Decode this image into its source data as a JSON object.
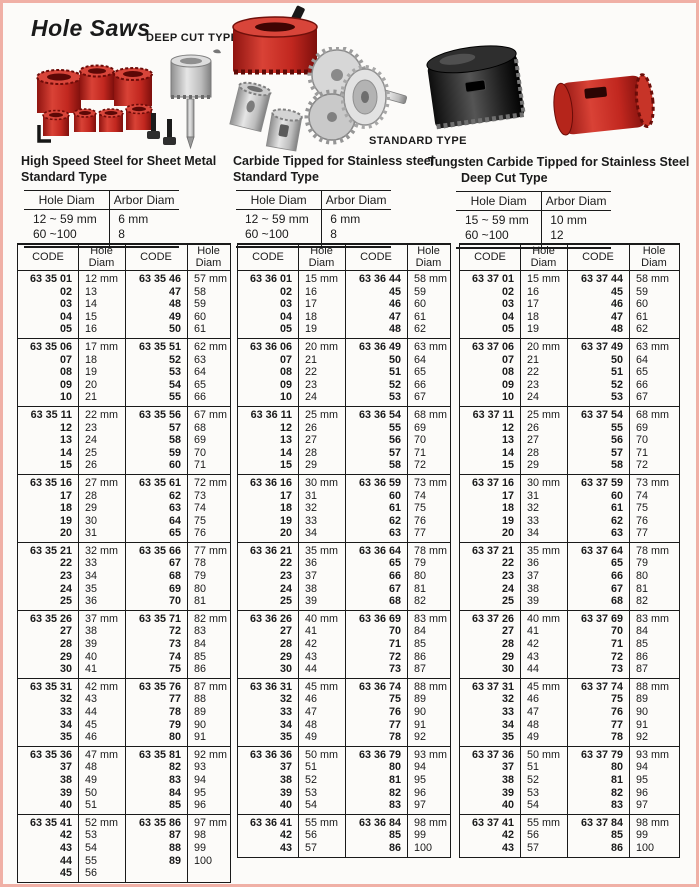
{
  "page": {
    "title": "Hole Saws"
  },
  "photo_labels": {
    "deep_cut": "DEEP CUT TYPE",
    "standard": "STANDARD TYPE"
  },
  "photos": [
    "hole-saw-set",
    "deep-cut-hole-saw",
    "large-red-hole-saw",
    "carbide-tipped-saws",
    "multi-tooth-cutters",
    "arbor-hole-saw",
    "black-hole-saw",
    "red-hole-saw"
  ],
  "colors": {
    "accent_red": "#c1272d",
    "frame_pink": "#f0b0a6",
    "rule_black": "#1a1a1a"
  },
  "sections": [
    {
      "line1": "High Speed Steel for Sheet Metal",
      "line2": "Standard Type",
      "headers": [
        "Hole Diam",
        "Arbor Diam"
      ],
      "rows": [
        [
          "12 ~ 59 mm",
          "6 mm"
        ],
        [
          "60 ~100",
          "8"
        ]
      ]
    },
    {
      "line1": "Carbide Tipped for Stainless steel",
      "line2": "Standard Type",
      "headers": [
        "Hole Diam",
        "Arbor Diam"
      ],
      "rows": [
        [
          "12 ~ 59 mm",
          "6 mm"
        ],
        [
          "60 ~100",
          "8"
        ]
      ]
    },
    {
      "line1": "Tungsten Carbide Tipped for Stainless Steel",
      "line2": "Deep Cut Type",
      "headers": [
        "Hole Diam",
        "Arbor Diam"
      ],
      "rows": [
        [
          "15 ~ 59 mm",
          "10 mm"
        ],
        [
          "60 ~100",
          "12"
        ]
      ]
    }
  ],
  "main": {
    "col_code": "CODE",
    "col_diam": "Hole Diam",
    "tables": [
      {
        "id": "6335",
        "blocks": [
          {
            "lc": [
              "63 35 01",
              "02",
              "03",
              "04",
              "05"
            ],
            "ld": [
              "12 mm",
              "13",
              "14",
              "15",
              "16"
            ],
            "rc": [
              "63 35 46",
              "47",
              "48",
              "49",
              "50"
            ],
            "rd": [
              "57 mm",
              "58",
              "59",
              "60",
              "61"
            ]
          },
          {
            "lc": [
              "63 35 06",
              "07",
              "08",
              "09",
              "10"
            ],
            "ld": [
              "17 mm",
              "18",
              "19",
              "20",
              "21"
            ],
            "rc": [
              "63 35 51",
              "52",
              "53",
              "54",
              "55"
            ],
            "rd": [
              "62 mm",
              "63",
              "64",
              "65",
              "66"
            ]
          },
          {
            "lc": [
              "63 35 11",
              "12",
              "13",
              "14",
              "15"
            ],
            "ld": [
              "22 mm",
              "23",
              "24",
              "25",
              "26"
            ],
            "rc": [
              "63 35 56",
              "57",
              "58",
              "59",
              "60"
            ],
            "rd": [
              "67 mm",
              "68",
              "69",
              "70",
              "71"
            ]
          },
          {
            "lc": [
              "63 35 16",
              "17",
              "18",
              "19",
              "20"
            ],
            "ld": [
              "27 mm",
              "28",
              "29",
              "30",
              "31"
            ],
            "rc": [
              "63 35 61",
              "62",
              "63",
              "64",
              "65"
            ],
            "rd": [
              "72 mm",
              "73",
              "74",
              "75",
              "76"
            ]
          },
          {
            "lc": [
              "63 35 21",
              "22",
              "23",
              "24",
              "25"
            ],
            "ld": [
              "32 mm",
              "33",
              "34",
              "35",
              "36"
            ],
            "rc": [
              "63 35 66",
              "67",
              "68",
              "69",
              "70"
            ],
            "rd": [
              "77 mm",
              "78",
              "79",
              "80",
              "81"
            ]
          },
          {
            "lc": [
              "63 35 26",
              "27",
              "28",
              "29",
              "30"
            ],
            "ld": [
              "37 mm",
              "38",
              "39",
              "40",
              "41"
            ],
            "rc": [
              "63 35 71",
              "72",
              "73",
              "74",
              "75"
            ],
            "rd": [
              "82 mm",
              "83",
              "84",
              "85",
              "86"
            ]
          },
          {
            "lc": [
              "63 35 31",
              "32",
              "33",
              "34",
              "35"
            ],
            "ld": [
              "42 mm",
              "43",
              "44",
              "45",
              "46"
            ],
            "rc": [
              "63 35 76",
              "77",
              "78",
              "79",
              "80"
            ],
            "rd": [
              "87 mm",
              "88",
              "89",
              "90",
              "91"
            ]
          },
          {
            "lc": [
              "63 35 36",
              "37",
              "38",
              "39",
              "40"
            ],
            "ld": [
              "47 mm",
              "48",
              "49",
              "50",
              "51"
            ],
            "rc": [
              "63 35 81",
              "82",
              "83",
              "84",
              "85"
            ],
            "rd": [
              "92 mm",
              "93",
              "94",
              "95",
              "96"
            ]
          },
          {
            "lc": [
              "63 35 41",
              "42",
              "43",
              "44",
              "45"
            ],
            "ld": [
              "52 mm",
              "53",
              "54",
              "55",
              "56"
            ],
            "rc": [
              "63 35 86",
              "87",
              "88",
              "89"
            ],
            "rd": [
              "97 mm",
              "98",
              "99",
              "100"
            ]
          }
        ]
      },
      {
        "id": "6336",
        "blocks": [
          {
            "lc": [
              "63 36 01",
              "02",
              "03",
              "04",
              "05"
            ],
            "ld": [
              "15 mm",
              "16",
              "17",
              "18",
              "19"
            ],
            "rc": [
              "63 36 44",
              "45",
              "46",
              "47",
              "48"
            ],
            "rd": [
              "58 mm",
              "59",
              "60",
              "61",
              "62"
            ]
          },
          {
            "lc": [
              "63 36 06",
              "07",
              "08",
              "09",
              "10"
            ],
            "ld": [
              "20 mm",
              "21",
              "22",
              "23",
              "24"
            ],
            "rc": [
              "63 36 49",
              "50",
              "51",
              "52",
              "53"
            ],
            "rd": [
              "63 mm",
              "64",
              "65",
              "66",
              "67"
            ]
          },
          {
            "lc": [
              "63 36 11",
              "12",
              "13",
              "14",
              "15"
            ],
            "ld": [
              "25 mm",
              "26",
              "27",
              "28",
              "29"
            ],
            "rc": [
              "63 36 54",
              "55",
              "56",
              "57",
              "58"
            ],
            "rd": [
              "68 mm",
              "69",
              "70",
              "71",
              "72"
            ]
          },
          {
            "lc": [
              "63 36 16",
              "17",
              "18",
              "19",
              "20"
            ],
            "ld": [
              "30 mm",
              "31",
              "32",
              "33",
              "34"
            ],
            "rc": [
              "63 36 59",
              "60",
              "61",
              "62",
              "63"
            ],
            "rd": [
              "73 mm",
              "74",
              "75",
              "76",
              "77"
            ]
          },
          {
            "lc": [
              "63 36 21",
              "22",
              "23",
              "24",
              "25"
            ],
            "ld": [
              "35 mm",
              "36",
              "37",
              "38",
              "39"
            ],
            "rc": [
              "63 36 64",
              "65",
              "66",
              "67",
              "68"
            ],
            "rd": [
              "78 mm",
              "79",
              "80",
              "81",
              "82"
            ]
          },
          {
            "lc": [
              "63 36 26",
              "27",
              "28",
              "29",
              "30"
            ],
            "ld": [
              "40 mm",
              "41",
              "42",
              "43",
              "44"
            ],
            "rc": [
              "63 36 69",
              "70",
              "71",
              "72",
              "73"
            ],
            "rd": [
              "83 mm",
              "84",
              "85",
              "86",
              "87"
            ]
          },
          {
            "lc": [
              "63 36 31",
              "32",
              "33",
              "34",
              "35"
            ],
            "ld": [
              "45 mm",
              "46",
              "47",
              "48",
              "49"
            ],
            "rc": [
              "63 36 74",
              "75",
              "76",
              "77",
              "78"
            ],
            "rd": [
              "88 mm",
              "89",
              "90",
              "91",
              "92"
            ]
          },
          {
            "lc": [
              "63 36 36",
              "37",
              "38",
              "39",
              "40"
            ],
            "ld": [
              "50 mm",
              "51",
              "52",
              "53",
              "54"
            ],
            "rc": [
              "63 36 79",
              "80",
              "81",
              "82",
              "83"
            ],
            "rd": [
              "93 mm",
              "94",
              "95",
              "96",
              "97"
            ]
          },
          {
            "lc": [
              "63 36 41",
              "42",
              "43"
            ],
            "ld": [
              "55 mm",
              "56",
              "57"
            ],
            "rc": [
              "63 36 84",
              "85",
              "86"
            ],
            "rd": [
              "98 mm",
              "99",
              "100"
            ]
          }
        ]
      },
      {
        "id": "6337",
        "blocks": [
          {
            "lc": [
              "63 37 01",
              "02",
              "03",
              "04",
              "05"
            ],
            "ld": [
              "15 mm",
              "16",
              "17",
              "18",
              "19"
            ],
            "rc": [
              "63 37 44",
              "45",
              "46",
              "47",
              "48"
            ],
            "rd": [
              "58 mm",
              "59",
              "60",
              "61",
              "62"
            ]
          },
          {
            "lc": [
              "63 37 06",
              "07",
              "08",
              "09",
              "10"
            ],
            "ld": [
              "20 mm",
              "21",
              "22",
              "23",
              "24"
            ],
            "rc": [
              "63 37 49",
              "50",
              "51",
              "52",
              "53"
            ],
            "rd": [
              "63 mm",
              "64",
              "65",
              "66",
              "67"
            ]
          },
          {
            "lc": [
              "63 37 11",
              "12",
              "13",
              "14",
              "15"
            ],
            "ld": [
              "25 mm",
              "26",
              "27",
              "28",
              "29"
            ],
            "rc": [
              "63 37 54",
              "55",
              "56",
              "57",
              "58"
            ],
            "rd": [
              "68 mm",
              "69",
              "70",
              "71",
              "72"
            ]
          },
          {
            "lc": [
              "63 37 16",
              "17",
              "18",
              "19",
              "20"
            ],
            "ld": [
              "30 mm",
              "31",
              "32",
              "33",
              "34"
            ],
            "rc": [
              "63 37 59",
              "60",
              "61",
              "62",
              "63"
            ],
            "rd": [
              "73 mm",
              "74",
              "75",
              "76",
              "77"
            ]
          },
          {
            "lc": [
              "63 37 21",
              "22",
              "23",
              "24",
              "25"
            ],
            "ld": [
              "35 mm",
              "36",
              "37",
              "38",
              "39"
            ],
            "rc": [
              "63 37 64",
              "65",
              "66",
              "67",
              "68"
            ],
            "rd": [
              "78 mm",
              "79",
              "80",
              "81",
              "82"
            ]
          },
          {
            "lc": [
              "63 37 26",
              "27",
              "28",
              "29",
              "30"
            ],
            "ld": [
              "40 mm",
              "41",
              "42",
              "43",
              "44"
            ],
            "rc": [
              "63 37 69",
              "70",
              "71",
              "72",
              "73"
            ],
            "rd": [
              "83 mm",
              "84",
              "85",
              "86",
              "87"
            ]
          },
          {
            "lc": [
              "63 37 31",
              "32",
              "33",
              "34",
              "35"
            ],
            "ld": [
              "45 mm",
              "46",
              "47",
              "48",
              "49"
            ],
            "rc": [
              "63 37 74",
              "75",
              "76",
              "77",
              "78"
            ],
            "rd": [
              "88 mm",
              "89",
              "90",
              "91",
              "92"
            ]
          },
          {
            "lc": [
              "63 37 36",
              "37",
              "38",
              "39",
              "40"
            ],
            "ld": [
              "50 mm",
              "51",
              "52",
              "53",
              "54"
            ],
            "rc": [
              "63 37 79",
              "80",
              "81",
              "82",
              "83"
            ],
            "rd": [
              "93 mm",
              "94",
              "95",
              "96",
              "97"
            ]
          },
          {
            "lc": [
              "63 37 41",
              "42",
              "43"
            ],
            "ld": [
              "55 mm",
              "56",
              "57"
            ],
            "rc": [
              "63 37 84",
              "85",
              "86"
            ],
            "rd": [
              "98 mm",
              "99",
              "100"
            ]
          }
        ]
      }
    ]
  }
}
